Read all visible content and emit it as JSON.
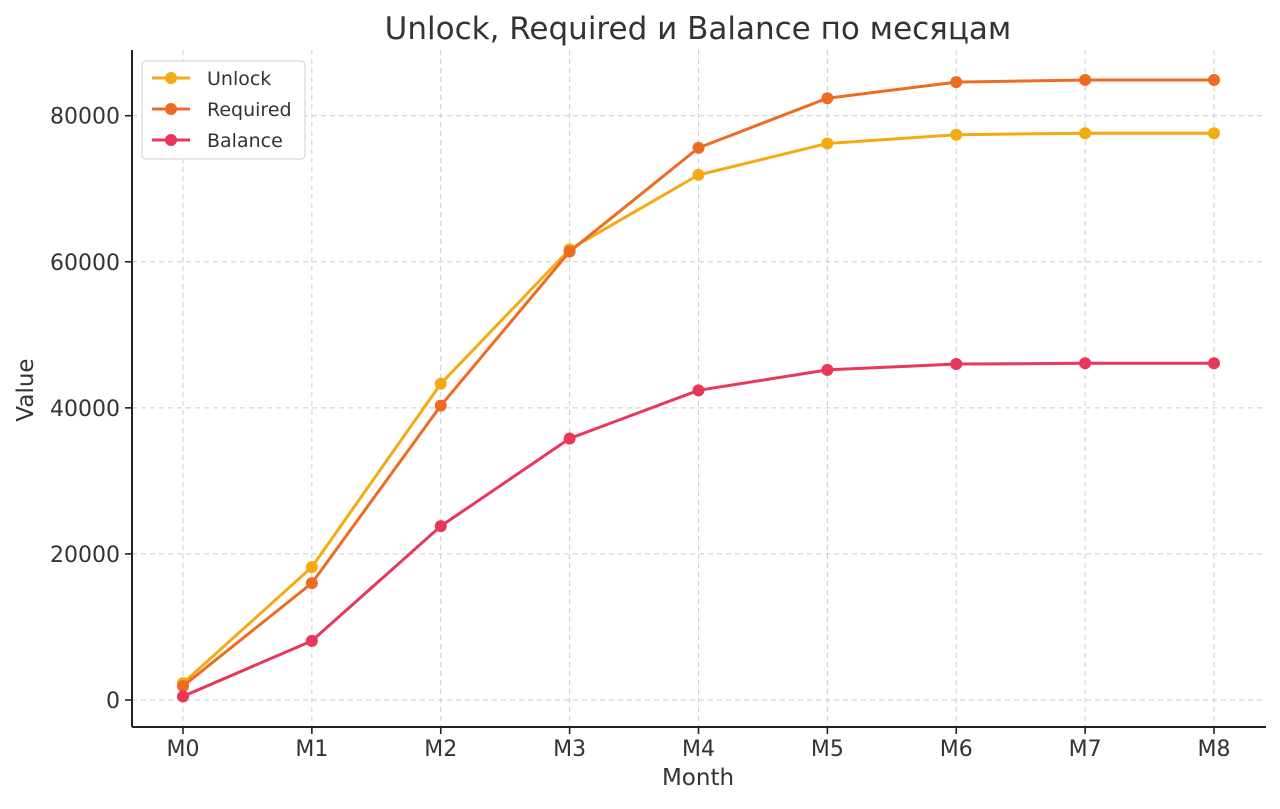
{
  "chart_data": {
    "type": "line",
    "title": "Unlock, Required и Balance по месяцам",
    "xlabel": "Month",
    "ylabel": "Value",
    "categories": [
      "M0",
      "M1",
      "M2",
      "M3",
      "M4",
      "M5",
      "M6",
      "M7",
      "M8"
    ],
    "ylim": [
      -3700,
      89000
    ],
    "yticks": [
      0,
      20000,
      40000,
      60000,
      80000
    ],
    "grid": true,
    "legend_position": "top-left",
    "series": [
      {
        "name": "Unlock",
        "color": "#F4AA12",
        "values": [
          2300,
          18200,
          43300,
          61700,
          71900,
          76200,
          77400,
          77600,
          77600
        ]
      },
      {
        "name": "Required",
        "color": "#EE6B24",
        "values": [
          1900,
          16000,
          40300,
          61400,
          75600,
          82400,
          84600,
          84900,
          84900
        ]
      },
      {
        "name": "Balance",
        "color": "#E8385A",
        "values": [
          500,
          8100,
          23800,
          35800,
          42400,
          45200,
          46000,
          46100,
          46100
        ]
      }
    ]
  }
}
